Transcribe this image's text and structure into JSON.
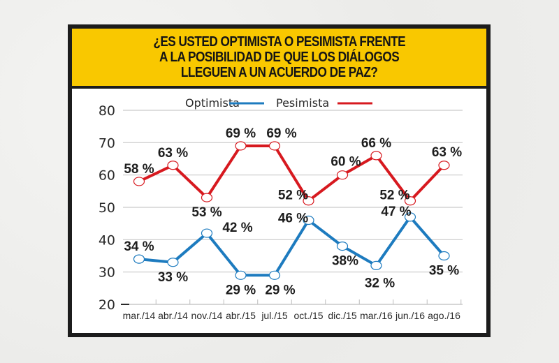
{
  "colors": {
    "frame": "#1c1c1c",
    "header_bg": "#f9c800",
    "optimista": "#1d7bbf",
    "pesimista": "#d7191f",
    "grid": "#c9c9c9"
  },
  "header": {
    "lines": [
      "¿ES USTED OPTIMISTA O PESIMISTA FRENTE",
      "A LA POSIBILIDAD DE QUE LOS DIÁLOGOS",
      "LLEGUEN A UN ACUERDO DE PAZ?"
    ]
  },
  "chart_data": {
    "type": "line",
    "title": "¿ES USTED OPTIMISTA O PESIMISTA FRENTE A LA POSIBILIDAD DE QUE LOS DIÁLOGOS LLEGUEN A UN ACUERDO DE PAZ?",
    "xlabel": "",
    "ylabel": "",
    "ylim": [
      20,
      80
    ],
    "yticks": [
      20,
      30,
      40,
      50,
      60,
      70,
      80
    ],
    "grid": true,
    "legend_position": "top-center",
    "categories": [
      "mar./14",
      "abr./14",
      "nov./14",
      "abr./15",
      "jul./15",
      "oct./15",
      "dic./15",
      "mar./16",
      "jun./16",
      "ago./16"
    ],
    "series": [
      {
        "name": "Optimista",
        "color": "#1d7bbf",
        "values": [
          34,
          33,
          42,
          29,
          29,
          46,
          38,
          32,
          47,
          35
        ],
        "labels": [
          "34 %",
          "33 %",
          "42 %",
          "29 %",
          "29 %",
          "46 %",
          "38%",
          "32 %",
          "47 %",
          "35 %"
        ]
      },
      {
        "name": "Pesimista",
        "color": "#d7191f",
        "values": [
          58,
          63,
          53,
          69,
          69,
          52,
          60,
          66,
          52,
          63
        ],
        "labels": [
          "58 %",
          "63 %",
          "53 %",
          "69 %",
          "69 %",
          "52 %",
          "60 %",
          "66 %",
          "52 %",
          "63 %"
        ]
      }
    ]
  }
}
